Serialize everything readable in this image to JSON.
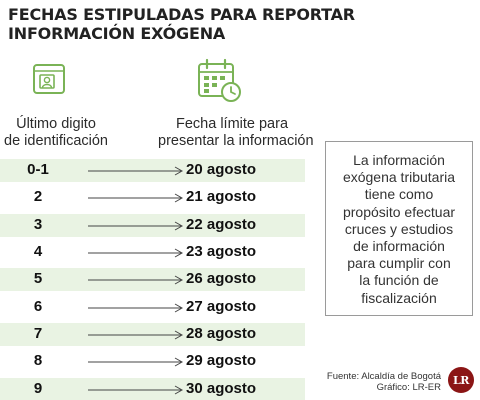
{
  "title": {
    "line1": "FECHAS ESTIPULADAS PARA REPORTAR",
    "line2": "INFORMACIÓN EXÓGENA"
  },
  "icons": {
    "left": "id-card-icon",
    "right": "calendar-clock-icon",
    "color": "#7ab356"
  },
  "columns": {
    "left": {
      "line1": "Último digito",
      "line2": "de identificación"
    },
    "right": {
      "line1": "Fecha límite para",
      "line2": "presentar la información"
    }
  },
  "rows": [
    {
      "digit": "0-1",
      "date": "20 agosto"
    },
    {
      "digit": "2",
      "date": "21 agosto"
    },
    {
      "digit": "3",
      "date": "22 agosto"
    },
    {
      "digit": "4",
      "date": "23 agosto"
    },
    {
      "digit": "5",
      "date": "26 agosto"
    },
    {
      "digit": "6",
      "date": "27 agosto"
    },
    {
      "digit": "7",
      "date": "28 agosto"
    },
    {
      "digit": "8",
      "date": "29 agosto"
    },
    {
      "digit": "9",
      "date": "30 agosto"
    }
  ],
  "note": {
    "lines": [
      "La información",
      "exógena tributaria",
      "tiene como",
      "propósito efectuar",
      "cruces y estudios",
      "de información",
      "para cumplir con",
      "la función de",
      "fiscalización"
    ]
  },
  "source": {
    "line1": "Fuente: Alcaldía de Bogotá",
    "line2": "Gráfico: LR-ER"
  },
  "logo": {
    "text": "LR",
    "color": "#8b1515"
  },
  "colors": {
    "row_shade": "#e9f3e3",
    "accent": "#7ab356"
  }
}
